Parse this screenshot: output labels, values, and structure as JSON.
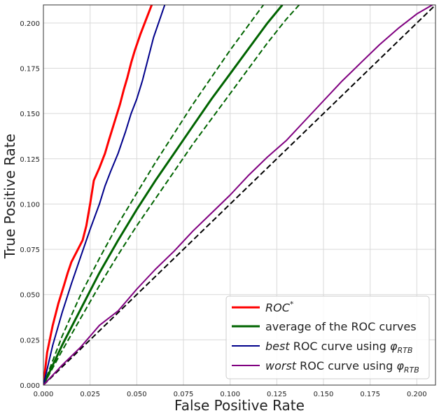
{
  "chart_data": {
    "type": "line",
    "xlabel": "False Positive Rate",
    "ylabel": "True Positive Rate",
    "xlim": [
      0,
      0.21
    ],
    "ylim": [
      0,
      0.21
    ],
    "grid": true,
    "legend_position": "bottom-right",
    "x_ticks": [
      "0.000",
      "0.025",
      "0.050",
      "0.075",
      "0.100",
      "0.125",
      "0.150",
      "0.175",
      "0.200"
    ],
    "y_ticks": [
      "0.000",
      "0.025",
      "0.050",
      "0.075",
      "0.100",
      "0.125",
      "0.150",
      "0.175",
      "0.200"
    ],
    "colors": {
      "roc_star": "#ff0000",
      "average": "#006400",
      "best": "#00008b",
      "worst": "#800080",
      "diagonal": "#000000"
    },
    "series": [
      {
        "name": "ROC*",
        "color": "#ff0000",
        "style": "solid",
        "points": [
          [
            0,
            0
          ],
          [
            0.002,
            0.018
          ],
          [
            0.005,
            0.033
          ],
          [
            0.008,
            0.045
          ],
          [
            0.011,
            0.055
          ],
          [
            0.013,
            0.062
          ],
          [
            0.015,
            0.068
          ],
          [
            0.018,
            0.074
          ],
          [
            0.021,
            0.08
          ],
          [
            0.023,
            0.088
          ],
          [
            0.025,
            0.1
          ],
          [
            0.027,
            0.113
          ],
          [
            0.03,
            0.12
          ],
          [
            0.033,
            0.128
          ],
          [
            0.035,
            0.135
          ],
          [
            0.038,
            0.145
          ],
          [
            0.041,
            0.155
          ],
          [
            0.043,
            0.163
          ],
          [
            0.045,
            0.17
          ],
          [
            0.047,
            0.178
          ],
          [
            0.049,
            0.185
          ],
          [
            0.052,
            0.194
          ],
          [
            0.055,
            0.202
          ],
          [
            0.058,
            0.21
          ]
        ]
      },
      {
        "name": "average of the ROC curves",
        "color": "#006400",
        "style": "solid",
        "points": [
          [
            0,
            0
          ],
          [
            0.01,
            0.022
          ],
          [
            0.02,
            0.042
          ],
          [
            0.03,
            0.062
          ],
          [
            0.04,
            0.08
          ],
          [
            0.05,
            0.097
          ],
          [
            0.06,
            0.113
          ],
          [
            0.07,
            0.128
          ],
          [
            0.08,
            0.143
          ],
          [
            0.09,
            0.158
          ],
          [
            0.1,
            0.172
          ],
          [
            0.11,
            0.186
          ],
          [
            0.12,
            0.2
          ],
          [
            0.128,
            0.21
          ]
        ]
      },
      {
        "name": "average upper band",
        "color": "#006400",
        "style": "dashed",
        "points": [
          [
            0,
            0
          ],
          [
            0.01,
            0.027
          ],
          [
            0.02,
            0.05
          ],
          [
            0.03,
            0.07
          ],
          [
            0.04,
            0.089
          ],
          [
            0.05,
            0.106
          ],
          [
            0.06,
            0.123
          ],
          [
            0.07,
            0.139
          ],
          [
            0.08,
            0.155
          ],
          [
            0.09,
            0.17
          ],
          [
            0.1,
            0.185
          ],
          [
            0.11,
            0.199
          ],
          [
            0.12,
            0.213
          ]
        ]
      },
      {
        "name": "average lower band",
        "color": "#006400",
        "style": "dashed",
        "points": [
          [
            0,
            0
          ],
          [
            0.01,
            0.019
          ],
          [
            0.02,
            0.037
          ],
          [
            0.03,
            0.055
          ],
          [
            0.04,
            0.072
          ],
          [
            0.05,
            0.088
          ],
          [
            0.06,
            0.103
          ],
          [
            0.07,
            0.118
          ],
          [
            0.08,
            0.133
          ],
          [
            0.09,
            0.147
          ],
          [
            0.1,
            0.161
          ],
          [
            0.11,
            0.175
          ],
          [
            0.12,
            0.189
          ],
          [
            0.13,
            0.202
          ],
          [
            0.137,
            0.21
          ]
        ]
      },
      {
        "name": "best ROC curve using φRTB",
        "color": "#00008b",
        "style": "solid",
        "points": [
          [
            0,
            0
          ],
          [
            0.005,
            0.022
          ],
          [
            0.01,
            0.04
          ],
          [
            0.015,
            0.056
          ],
          [
            0.02,
            0.071
          ],
          [
            0.025,
            0.086
          ],
          [
            0.03,
            0.1
          ],
          [
            0.033,
            0.11
          ],
          [
            0.036,
            0.118
          ],
          [
            0.04,
            0.128
          ],
          [
            0.044,
            0.14
          ],
          [
            0.047,
            0.15
          ],
          [
            0.05,
            0.158
          ],
          [
            0.053,
            0.168
          ],
          [
            0.056,
            0.18
          ],
          [
            0.059,
            0.192
          ],
          [
            0.062,
            0.201
          ],
          [
            0.065,
            0.21
          ]
        ]
      },
      {
        "name": "worst ROC curve using φRTB",
        "color": "#800080",
        "style": "solid",
        "points": [
          [
            0,
            0
          ],
          [
            0.01,
            0.011
          ],
          [
            0.02,
            0.021
          ],
          [
            0.03,
            0.033
          ],
          [
            0.04,
            0.041
          ],
          [
            0.05,
            0.053
          ],
          [
            0.06,
            0.064
          ],
          [
            0.07,
            0.074
          ],
          [
            0.08,
            0.085
          ],
          [
            0.09,
            0.095
          ],
          [
            0.1,
            0.105
          ],
          [
            0.11,
            0.116
          ],
          [
            0.12,
            0.126
          ],
          [
            0.13,
            0.135
          ],
          [
            0.14,
            0.146
          ],
          [
            0.15,
            0.157
          ],
          [
            0.16,
            0.168
          ],
          [
            0.17,
            0.178
          ],
          [
            0.18,
            0.188
          ],
          [
            0.19,
            0.197
          ],
          [
            0.2,
            0.205
          ],
          [
            0.21,
            0.211
          ]
        ]
      },
      {
        "name": "chance diagonal",
        "color": "#000000",
        "style": "dashed",
        "points": [
          [
            0,
            0
          ],
          [
            0.21,
            0.21
          ]
        ]
      }
    ],
    "legend": {
      "roc_star": "ROC",
      "roc_star_sup": "*",
      "average": "average of the ROC curves",
      "best_prefix": "best",
      "best_suffix": " ROC curve using ",
      "best_phi": "φ",
      "best_sub": "RTB",
      "worst_prefix": "worst",
      "worst_suffix": " ROC curve using ",
      "worst_phi": "φ",
      "worst_sub": "RTB"
    }
  }
}
